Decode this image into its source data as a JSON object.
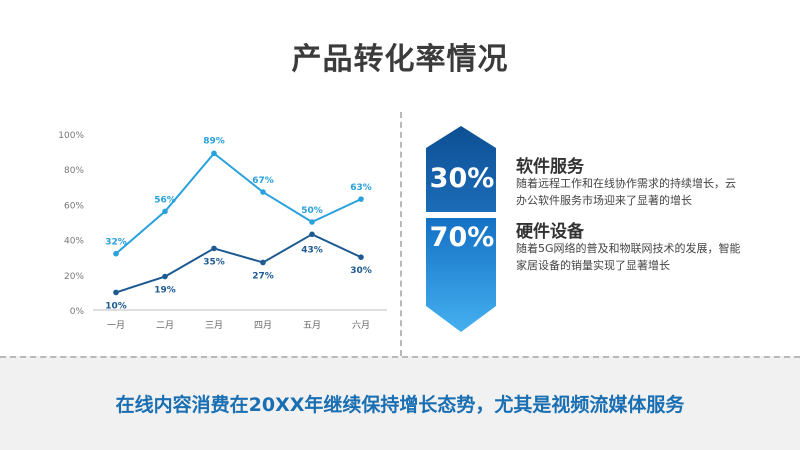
{
  "page": {
    "title": "产品转化率情况",
    "footer": "在线内容消费在20XX年继续保持增长态势，尤其是视频流媒体服务"
  },
  "cards": [
    {
      "percent": "30%",
      "title": "软件服务",
      "desc": "随着远程工作和在线协作需求的持续增长，云办公软件服务市场迎来了显著的增长"
    },
    {
      "percent": "70%",
      "title": "硬件设备",
      "desc": "随着5G网络的普及和物联网技术的发展，智能家居设备的销量实现了显著增长"
    }
  ],
  "colors": {
    "series1": "#29a1dc",
    "series2": "#1d5a92",
    "badge_top": "#0d4f94",
    "badge_bottom": "#3aa6ec",
    "footer_text": "#1a6fb3"
  },
  "chart_data": {
    "type": "line",
    "categories": [
      "一月",
      "二月",
      "三月",
      "四月",
      "五月",
      "六月"
    ],
    "yticks": [
      "0%",
      "20%",
      "40%",
      "60%",
      "80%",
      "100%"
    ],
    "ylim": [
      0,
      100
    ],
    "grid": false,
    "series": [
      {
        "values": [
          32,
          56,
          89,
          67,
          50,
          63
        ],
        "labels": [
          "32%",
          "56%",
          "89%",
          "67%",
          "50%",
          "63%"
        ],
        "color": "#29a1dc"
      },
      {
        "values": [
          10,
          19,
          35,
          27,
          43,
          30
        ],
        "labels": [
          "10%",
          "19%",
          "35%",
          "27%",
          "43%",
          "30%"
        ],
        "color": "#1d5a92"
      }
    ]
  }
}
